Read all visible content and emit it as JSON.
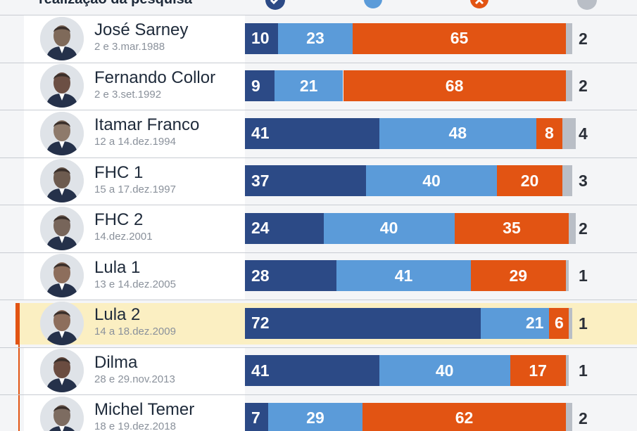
{
  "header": {
    "label": "realização da pesquisa",
    "icons": [
      {
        "name": "check-icon",
        "color": "#2c4a86"
      },
      {
        "name": "dot-icon",
        "color": "#5b9bd9"
      },
      {
        "name": "x-icon",
        "color": "#e25413"
      },
      {
        "name": "dot-icon",
        "color": "#b9bec6"
      }
    ]
  },
  "colors": {
    "dark_blue": "#2c4a86",
    "light_blue": "#5b9bd9",
    "orange": "#e25413",
    "gray": "#b9bec6",
    "highlight": "#fbefc2"
  },
  "chart_data": {
    "type": "bar",
    "stacked": true,
    "orientation": "horizontal",
    "xlim": [
      0,
      100
    ],
    "categories": [
      {
        "name": "José Sarney",
        "date": "2 e 3.mar.1988"
      },
      {
        "name": "Fernando Collor",
        "date": "2 e 3.set.1992"
      },
      {
        "name": "Itamar Franco",
        "date": "12 a 14.dez.1994"
      },
      {
        "name": "FHC 1",
        "date": "15 a 17.dez.1997"
      },
      {
        "name": "FHC 2",
        "date": "14.dez.2001"
      },
      {
        "name": "Lula 1",
        "date": "13 e 14.dez.2005"
      },
      {
        "name": "Lula 2",
        "date": "14 a 18.dez.2009",
        "highlighted": true
      },
      {
        "name": "Dilma",
        "date": "28 e 29.nov.2013"
      },
      {
        "name": "Michel Temer",
        "date": "18 e 19.dez.2018"
      }
    ],
    "series": [
      {
        "color": "#2c4a86",
        "values": [
          10,
          9,
          41,
          37,
          24,
          28,
          72,
          41,
          7
        ]
      },
      {
        "color": "#5b9bd9",
        "values": [
          23,
          21,
          48,
          40,
          40,
          41,
          21,
          40,
          29
        ]
      },
      {
        "color": "#e25413",
        "values": [
          65,
          68,
          8,
          20,
          35,
          29,
          6,
          17,
          62
        ]
      },
      {
        "color": "#b9bec6",
        "values": [
          2,
          2,
          4,
          3,
          2,
          1,
          1,
          1,
          2
        ]
      }
    ]
  }
}
